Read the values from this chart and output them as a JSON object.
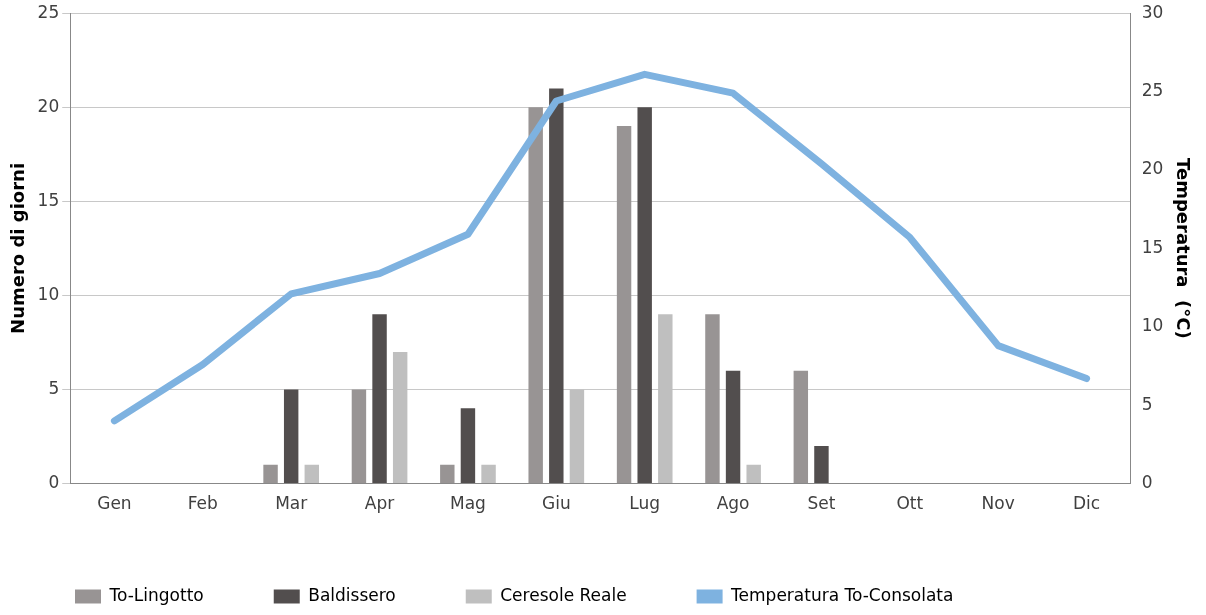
{
  "chart_data": {
    "type": "bar",
    "categories": [
      "Gen",
      "Feb",
      "Mar",
      "Apr",
      "Mag",
      "Giu",
      "Lug",
      "Ago",
      "Set",
      "Ott",
      "Nov",
      "Dic"
    ],
    "series": [
      {
        "name": "To-Lingotto",
        "color": "#989494",
        "values": [
          0,
          0,
          1,
          5,
          1,
          20,
          19,
          9,
          6,
          0,
          0,
          0
        ]
      },
      {
        "name": "Baldissero",
        "color": "#524e4e",
        "values": [
          0,
          0,
          5,
          9,
          4,
          21,
          20,
          6,
          2,
          0,
          0,
          0
        ]
      },
      {
        "name": "Ceresole Reale",
        "color": "#bfbfbf",
        "values": [
          0,
          0,
          1,
          7,
          1,
          5,
          9,
          1,
          0,
          0,
          0,
          0
        ]
      },
      {
        "name": "Temperatura To-Consolata",
        "type": "line",
        "axis": "y2",
        "color": "#7eb2e0",
        "values": [
          4.0,
          7.6,
          12.1,
          13.4,
          15.9,
          24.4,
          26.1,
          24.9,
          20.4,
          15.7,
          8.8,
          6.7
        ]
      }
    ],
    "ylabel": "Numero di giorni",
    "y2label": "Temperatura  (°C)",
    "ylim": [
      0,
      25
    ],
    "yticks": [
      0,
      5,
      10,
      15,
      20,
      25
    ],
    "y2lim": [
      0,
      30
    ],
    "y2ticks": [
      0,
      5,
      10,
      15,
      20,
      25,
      30
    ],
    "grid": "y",
    "legend": "bottom",
    "marker": "none"
  }
}
